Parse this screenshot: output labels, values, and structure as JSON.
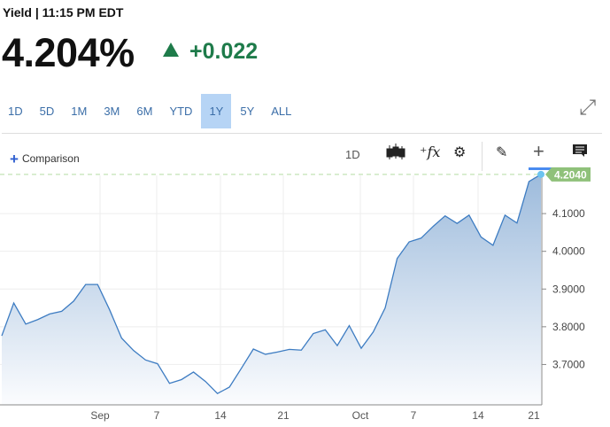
{
  "header": {
    "title": "Yield | 11:15 PM EDT",
    "price": "4.204%",
    "change": "+0.022",
    "change_color": "#1e7b4a",
    "direction": "up"
  },
  "ranges": [
    "1D",
    "5D",
    "1M",
    "3M",
    "6M",
    "YTD",
    "1Y",
    "5Y",
    "ALL"
  ],
  "selected_range": "1Y",
  "toolbar": {
    "comparison": "Comparison",
    "interval": "1D",
    "icons": [
      "candlestick-icon",
      "function-icon",
      "gear-icon",
      "pencil-icon",
      "crosshair-icon",
      "comment-icon"
    ],
    "active_tool": "crosshair-icon"
  },
  "chart_data": {
    "type": "area",
    "values": [
      3.776,
      3.863,
      3.807,
      3.819,
      3.834,
      3.841,
      3.868,
      3.912,
      3.912,
      3.845,
      3.77,
      3.737,
      3.712,
      3.702,
      3.65,
      3.66,
      3.68,
      3.655,
      3.623,
      3.64,
      3.69,
      3.741,
      3.727,
      3.733,
      3.74,
      3.738,
      3.782,
      3.792,
      3.75,
      3.803,
      3.743,
      3.786,
      3.85,
      3.981,
      4.025,
      4.035,
      4.066,
      4.094,
      4.074,
      4.096,
      4.038,
      4.016,
      4.096,
      4.075,
      4.185,
      4.204
    ],
    "x_ticks": [
      "Sep",
      "7",
      "14",
      "21",
      "Oct",
      "7",
      "14",
      "21"
    ],
    "y_ticks": [
      "3.7000",
      "3.8000",
      "3.9000",
      "4.0000",
      "4.1000"
    ],
    "last_value_label": "4.2040",
    "ylim": [
      3.593,
      4.22
    ],
    "grid": true,
    "line_color": "#3d7cc2",
    "last_label_color": "#8fc17a"
  }
}
